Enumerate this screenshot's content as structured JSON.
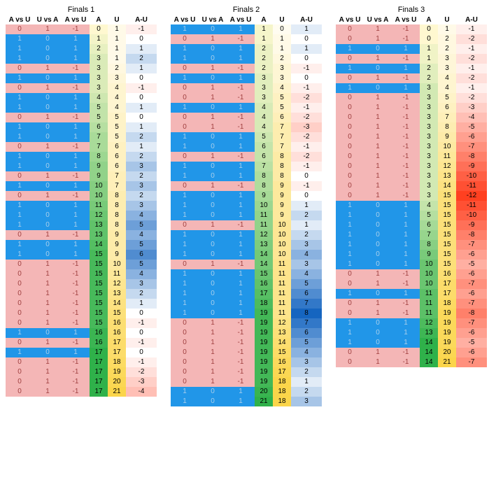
{
  "colors": {
    "pink": "#f4b6b6",
    "blue": "#2196e8",
    "yellow_light": "#fff2a8",
    "yellow_mid": "#fce96b",
    "green_lowest": "#e8f5e8",
    "red_strong": "#ff4d2e",
    "white": "#ffffff",
    "blue_invisible": "#a8cfec"
  },
  "headers": [
    "A vs U",
    "U vs A",
    "A vs U",
    "A",
    "U",
    "A-U"
  ],
  "panels": [
    {
      "title": "Finals 1",
      "rows": [
        {
          "t": "pink",
          "a": 0,
          "u": 1,
          "au": -1
        },
        {
          "t": "blue",
          "a": 1,
          "u": 1,
          "au": 0
        },
        {
          "t": "blue",
          "a": 2,
          "u": 1,
          "au": 1
        },
        {
          "t": "blue",
          "a": 3,
          "u": 1,
          "au": 2
        },
        {
          "t": "pink",
          "a": 3,
          "u": 2,
          "au": 1
        },
        {
          "t": "blue",
          "a": 3,
          "u": 3,
          "au": 0
        },
        {
          "t": "pink",
          "a": 3,
          "u": 4,
          "au": -1
        },
        {
          "t": "blue",
          "a": 4,
          "u": 4,
          "au": 0
        },
        {
          "t": "blue",
          "a": 5,
          "u": 4,
          "au": 1
        },
        {
          "t": "pink",
          "a": 5,
          "u": 5,
          "au": 0
        },
        {
          "t": "blue",
          "a": 6,
          "u": 5,
          "au": 1
        },
        {
          "t": "blue",
          "a": 7,
          "u": 5,
          "au": 2
        },
        {
          "t": "pink",
          "a": 7,
          "u": 6,
          "au": 1
        },
        {
          "t": "blue",
          "a": 8,
          "u": 6,
          "au": 2
        },
        {
          "t": "blue",
          "a": 9,
          "u": 6,
          "au": 3
        },
        {
          "t": "pink",
          "a": 9,
          "u": 7,
          "au": 2
        },
        {
          "t": "blue",
          "a": 10,
          "u": 7,
          "au": 3
        },
        {
          "t": "pink",
          "a": 10,
          "u": 8,
          "au": 2
        },
        {
          "t": "blue",
          "a": 11,
          "u": 8,
          "au": 3
        },
        {
          "t": "blue",
          "a": 12,
          "u": 8,
          "au": 4
        },
        {
          "t": "blue",
          "a": 13,
          "u": 8,
          "au": 5
        },
        {
          "t": "pink",
          "a": 13,
          "u": 9,
          "au": 4
        },
        {
          "t": "blue",
          "a": 14,
          "u": 9,
          "au": 5
        },
        {
          "t": "blue",
          "a": 15,
          "u": 9,
          "au": 6
        },
        {
          "t": "pink",
          "a": 15,
          "u": 10,
          "au": 5
        },
        {
          "t": "pink",
          "a": 15,
          "u": 11,
          "au": 4
        },
        {
          "t": "pink",
          "a": 15,
          "u": 12,
          "au": 3
        },
        {
          "t": "pink",
          "a": 15,
          "u": 13,
          "au": 2
        },
        {
          "t": "pink",
          "a": 15,
          "u": 14,
          "au": 1
        },
        {
          "t": "pink",
          "a": 15,
          "u": 15,
          "au": 0
        },
        {
          "t": "pink",
          "a": 15,
          "u": 16,
          "au": -1
        },
        {
          "t": "blue",
          "a": 16,
          "u": 16,
          "au": 0
        },
        {
          "t": "pink",
          "a": 16,
          "u": 17,
          "au": -1
        },
        {
          "t": "blue",
          "a": 17,
          "u": 17,
          "au": 0
        },
        {
          "t": "pink",
          "a": 17,
          "u": 18,
          "au": -1
        },
        {
          "t": "pink",
          "a": 17,
          "u": 19,
          "au": -2
        },
        {
          "t": "pink",
          "a": 17,
          "u": 20,
          "au": -3
        },
        {
          "t": "pink",
          "a": 17,
          "u": 21,
          "au": -4
        }
      ]
    },
    {
      "title": "Finals 2",
      "rows": [
        {
          "t": "blue",
          "a": 1,
          "u": 0,
          "au": 1
        },
        {
          "t": "pink",
          "a": 1,
          "u": 1,
          "au": 0
        },
        {
          "t": "blue",
          "a": 2,
          "u": 1,
          "au": 1
        },
        {
          "t": "blue",
          "a": 2,
          "u": 2,
          "au": 0
        },
        {
          "t": "pink",
          "a": 2,
          "u": 3,
          "au": -1
        },
        {
          "t": "blue",
          "a": 3,
          "u": 3,
          "au": 0
        },
        {
          "t": "pink",
          "a": 3,
          "u": 4,
          "au": -1
        },
        {
          "t": "pink",
          "a": 3,
          "u": 5,
          "au": -2
        },
        {
          "t": "blue",
          "a": 4,
          "u": 5,
          "au": -1
        },
        {
          "t": "pink",
          "a": 4,
          "u": 6,
          "au": -2
        },
        {
          "t": "pink",
          "a": 4,
          "u": 7,
          "au": -3
        },
        {
          "t": "blue",
          "a": 5,
          "u": 7,
          "au": -2
        },
        {
          "t": "blue",
          "a": 6,
          "u": 7,
          "au": -1
        },
        {
          "t": "pink",
          "a": 6,
          "u": 8,
          "au": -2
        },
        {
          "t": "blue",
          "a": 7,
          "u": 8,
          "au": -1
        },
        {
          "t": "blue",
          "a": 8,
          "u": 8,
          "au": 0
        },
        {
          "t": "pink",
          "a": 8,
          "u": 9,
          "au": -1
        },
        {
          "t": "blue",
          "a": 9,
          "u": 9,
          "au": 0
        },
        {
          "t": "blue",
          "a": 10,
          "u": 9,
          "au": 1
        },
        {
          "t": "blue",
          "a": 11,
          "u": 9,
          "au": 2
        },
        {
          "t": "pink",
          "a": 11,
          "u": 10,
          "au": 1
        },
        {
          "t": "blue",
          "a": 12,
          "u": 10,
          "au": 2
        },
        {
          "t": "blue",
          "a": 13,
          "u": 10,
          "au": 3
        },
        {
          "t": "blue",
          "a": 14,
          "u": 10,
          "au": 4
        },
        {
          "t": "pink",
          "a": 14,
          "u": 11,
          "au": 3
        },
        {
          "t": "blue",
          "a": 15,
          "u": 11,
          "au": 4
        },
        {
          "t": "blue",
          "a": 16,
          "u": 11,
          "au": 5
        },
        {
          "t": "blue",
          "a": 17,
          "u": 11,
          "au": 6
        },
        {
          "t": "blue",
          "a": 18,
          "u": 11,
          "au": 7
        },
        {
          "t": "blue",
          "a": 19,
          "u": 11,
          "au": 8
        },
        {
          "t": "pink",
          "a": 19,
          "u": 12,
          "au": 7
        },
        {
          "t": "pink",
          "a": 19,
          "u": 13,
          "au": 6
        },
        {
          "t": "pink",
          "a": 19,
          "u": 14,
          "au": 5
        },
        {
          "t": "pink",
          "a": 19,
          "u": 15,
          "au": 4
        },
        {
          "t": "pink",
          "a": 19,
          "u": 16,
          "au": 3
        },
        {
          "t": "pink",
          "a": 19,
          "u": 17,
          "au": 2
        },
        {
          "t": "pink",
          "a": 19,
          "u": 18,
          "au": 1
        },
        {
          "t": "blue",
          "a": 20,
          "u": 18,
          "au": 2
        },
        {
          "t": "blue",
          "a": 21,
          "u": 18,
          "au": 3
        }
      ]
    },
    {
      "title": "Finals 3",
      "rows": [
        {
          "t": "pink",
          "a": 0,
          "u": 1,
          "au": -1
        },
        {
          "t": "pink",
          "a": 0,
          "u": 2,
          "au": -2
        },
        {
          "t": "blue",
          "a": 1,
          "u": 2,
          "au": -1
        },
        {
          "t": "pink",
          "a": 1,
          "u": 3,
          "au": -2
        },
        {
          "t": "blue",
          "a": 2,
          "u": 3,
          "au": -1
        },
        {
          "t": "pink",
          "a": 2,
          "u": 4,
          "au": -2
        },
        {
          "t": "blue",
          "a": 3,
          "u": 4,
          "au": -1
        },
        {
          "t": "pink",
          "a": 3,
          "u": 5,
          "au": -2
        },
        {
          "t": "pink",
          "a": 3,
          "u": 6,
          "au": -3
        },
        {
          "t": "pink",
          "a": 3,
          "u": 7,
          "au": -4
        },
        {
          "t": "pink",
          "a": 3,
          "u": 8,
          "au": -5
        },
        {
          "t": "pink",
          "a": 3,
          "u": 9,
          "au": -6
        },
        {
          "t": "pink",
          "a": 3,
          "u": 10,
          "au": -7
        },
        {
          "t": "pink",
          "a": 3,
          "u": 11,
          "au": -8
        },
        {
          "t": "pink",
          "a": 3,
          "u": 12,
          "au": -9
        },
        {
          "t": "pink",
          "a": 3,
          "u": 13,
          "au": -10
        },
        {
          "t": "pink",
          "a": 3,
          "u": 14,
          "au": -11
        },
        {
          "t": "pink",
          "a": 3,
          "u": 15,
          "au": -12
        },
        {
          "t": "blue",
          "a": 4,
          "u": 15,
          "au": -11
        },
        {
          "t": "blue",
          "a": 5,
          "u": 15,
          "au": -10
        },
        {
          "t": "blue",
          "a": 6,
          "u": 15,
          "au": -9
        },
        {
          "t": "blue",
          "a": 7,
          "u": 15,
          "au": -8
        },
        {
          "t": "blue",
          "a": 8,
          "u": 15,
          "au": -7
        },
        {
          "t": "blue",
          "a": 9,
          "u": 15,
          "au": -6
        },
        {
          "t": "blue",
          "a": 10,
          "u": 15,
          "au": -5
        },
        {
          "t": "pink",
          "a": 10,
          "u": 16,
          "au": -6
        },
        {
          "t": "pink",
          "a": 10,
          "u": 17,
          "au": -7
        },
        {
          "t": "blue",
          "a": 11,
          "u": 17,
          "au": -6
        },
        {
          "t": "pink",
          "a": 11,
          "u": 18,
          "au": -7
        },
        {
          "t": "pink",
          "a": 11,
          "u": 19,
          "au": -8
        },
        {
          "t": "blue",
          "a": 12,
          "u": 19,
          "au": -7
        },
        {
          "t": "blue",
          "a": 13,
          "u": 19,
          "au": -6
        },
        {
          "t": "blue",
          "a": 14,
          "u": 19,
          "au": -5
        },
        {
          "t": "pink",
          "a": 14,
          "u": 20,
          "au": -6
        },
        {
          "t": "pink",
          "a": 14,
          "u": 21,
          "au": -7
        }
      ]
    }
  ],
  "au_scale": {
    "min": -12,
    "max": 8
  }
}
